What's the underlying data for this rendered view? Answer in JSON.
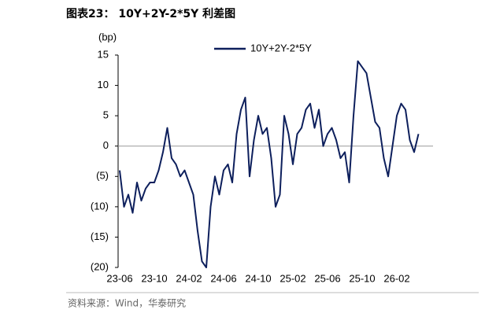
{
  "chart_data": {
    "type": "line",
    "title": "图表23：  10Y+2Y-2*5Y 利差图",
    "y_label": "(bp)",
    "source": "资料来源：Wind，华泰研究",
    "legend_position": "top",
    "categories": [
      "23-06",
      null,
      null,
      null,
      null,
      null,
      null,
      null,
      "23-10",
      null,
      null,
      null,
      null,
      null,
      null,
      null,
      "24-02",
      null,
      null,
      null,
      null,
      null,
      null,
      null,
      "24-06",
      null,
      null,
      null,
      null,
      null,
      null,
      null,
      "24-10",
      null,
      null,
      null,
      null,
      null,
      null,
      null,
      "25-02",
      null,
      null,
      null,
      null,
      null,
      null,
      null,
      "25-06",
      null,
      null,
      null,
      null,
      null,
      null,
      null,
      "25-10",
      null,
      null,
      null,
      null,
      null,
      null,
      null,
      "26-02",
      null,
      null,
      null,
      null,
      null
    ],
    "series": [
      {
        "name": "10Y+2Y-2*5Y",
        "color": "#0d1f5c",
        "values": [
          -4,
          -10,
          -8,
          -11,
          -6,
          -9,
          -7,
          -6,
          -6,
          -4,
          -1,
          3,
          -2,
          -3,
          -5,
          -4,
          -6,
          -8,
          -14,
          -19,
          -20,
          -10,
          -5,
          -8,
          -4,
          -3,
          -6,
          2,
          6,
          8,
          -5,
          1,
          5,
          2,
          3,
          -2,
          -10,
          -8,
          5,
          2,
          -3,
          2,
          3,
          6,
          7,
          3,
          6,
          0,
          2,
          3,
          1,
          -2,
          -1,
          -6,
          5,
          14,
          13,
          12,
          8,
          4,
          3,
          -2,
          -5,
          0,
          5,
          7,
          6,
          1,
          -1,
          2
        ]
      }
    ],
    "ylim": [
      -20,
      15
    ],
    "yticks": [
      15,
      10,
      5,
      0,
      {
        "value": -5,
        "label": "(5)"
      },
      {
        "value": -10,
        "label": "(10)"
      },
      {
        "value": -15,
        "label": "(15)"
      },
      {
        "value": -20,
        "label": "(20)"
      }
    ]
  }
}
